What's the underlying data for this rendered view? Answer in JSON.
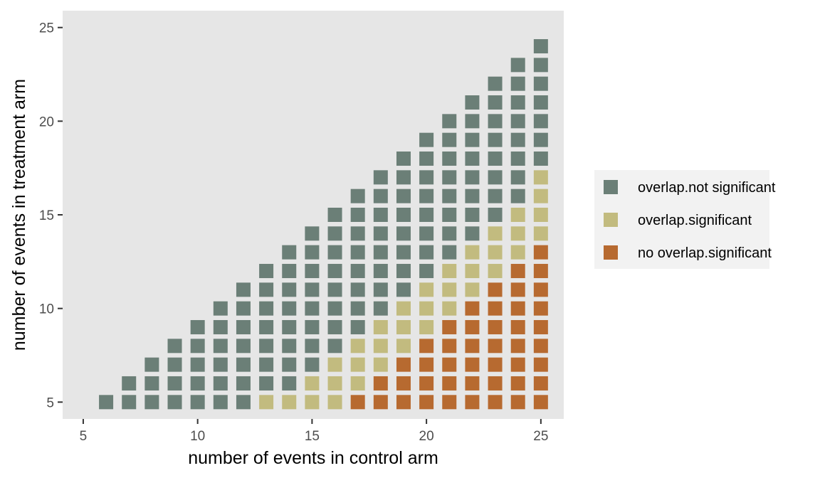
{
  "chart_data": {
    "type": "heatmap",
    "title": "",
    "xlabel": "number of events in control arm",
    "ylabel": "number of events in treatment arm",
    "xlim": [
      4.1,
      26
    ],
    "ylim": [
      4.1,
      25.9
    ],
    "x_ticks": [
      5,
      10,
      15,
      20,
      25
    ],
    "y_ticks": [
      5,
      10,
      15,
      20,
      25
    ],
    "grid": false,
    "legend_position": "right",
    "categories": [
      {
        "key": "overlap.not significant",
        "label": "overlap.not significant",
        "color": "#6b7f77"
      },
      {
        "key": "overlap.significant",
        "label": "overlap.significant",
        "color": "#c2bb7f"
      },
      {
        "key": "no overlap.significant",
        "label": "no overlap.significant",
        "color": "#b76a30"
      }
    ],
    "columns": [
      {
        "x": 6,
        "y_min": 5,
        "y_max": 5,
        "no_overlap_max": null,
        "overlap_sig_max": null
      },
      {
        "x": 7,
        "y_min": 5,
        "y_max": 6,
        "no_overlap_max": null,
        "overlap_sig_max": null
      },
      {
        "x": 8,
        "y_min": 5,
        "y_max": 7,
        "no_overlap_max": null,
        "overlap_sig_max": null
      },
      {
        "x": 9,
        "y_min": 5,
        "y_max": 8,
        "no_overlap_max": null,
        "overlap_sig_max": null
      },
      {
        "x": 10,
        "y_min": 5,
        "y_max": 9,
        "no_overlap_max": null,
        "overlap_sig_max": null
      },
      {
        "x": 11,
        "y_min": 5,
        "y_max": 10,
        "no_overlap_max": null,
        "overlap_sig_max": null
      },
      {
        "x": 12,
        "y_min": 5,
        "y_max": 11,
        "no_overlap_max": null,
        "overlap_sig_max": null
      },
      {
        "x": 13,
        "y_min": 5,
        "y_max": 12,
        "no_overlap_max": null,
        "overlap_sig_max": 5
      },
      {
        "x": 14,
        "y_min": 5,
        "y_max": 13,
        "no_overlap_max": null,
        "overlap_sig_max": 5
      },
      {
        "x": 15,
        "y_min": 5,
        "y_max": 14,
        "no_overlap_max": null,
        "overlap_sig_max": 6
      },
      {
        "x": 16,
        "y_min": 5,
        "y_max": 15,
        "no_overlap_max": null,
        "overlap_sig_max": 7
      },
      {
        "x": 17,
        "y_min": 5,
        "y_max": 16,
        "no_overlap_max": 5,
        "overlap_sig_max": 8
      },
      {
        "x": 18,
        "y_min": 5,
        "y_max": 17,
        "no_overlap_max": 6,
        "overlap_sig_max": 9
      },
      {
        "x": 19,
        "y_min": 5,
        "y_max": 18,
        "no_overlap_max": 7,
        "overlap_sig_max": 10
      },
      {
        "x": 20,
        "y_min": 5,
        "y_max": 19,
        "no_overlap_max": 8,
        "overlap_sig_max": 11
      },
      {
        "x": 21,
        "y_min": 5,
        "y_max": 20,
        "no_overlap_max": 9,
        "overlap_sig_max": 12
      },
      {
        "x": 22,
        "y_min": 5,
        "y_max": 21,
        "no_overlap_max": 10,
        "overlap_sig_max": 13
      },
      {
        "x": 23,
        "y_min": 5,
        "y_max": 22,
        "no_overlap_max": 11,
        "overlap_sig_max": 14
      },
      {
        "x": 24,
        "y_min": 5,
        "y_max": 23,
        "no_overlap_max": 12,
        "overlap_sig_max": 15
      },
      {
        "x": 25,
        "y_min": 5,
        "y_max": 24,
        "no_overlap_max": 13,
        "overlap_sig_max": 17
      }
    ],
    "background_color": "#e6e6e6"
  }
}
